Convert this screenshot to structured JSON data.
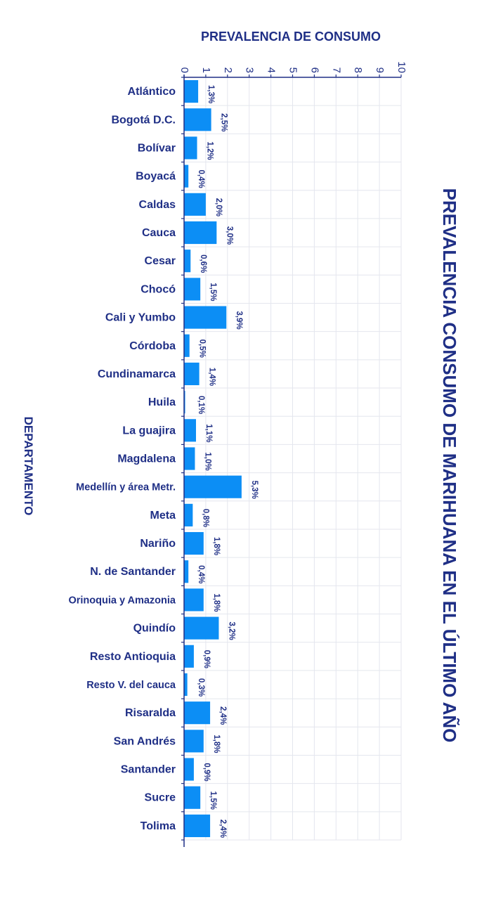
{
  "chart_data": {
    "type": "bar",
    "title": "PREVALENCIA CONSUMO DE MARIHUANA EN EL ÚLTIMO AÑO",
    "xlabel": "PREVALENCIA DE CONSUMO",
    "ylabel": "DEPARTAMENTO",
    "orientation": "horizontal",
    "xlim": [
      0,
      10
    ],
    "xticks": [
      "0",
      "1",
      "2",
      "3",
      "4",
      "5",
      "6",
      "7",
      "8",
      "9",
      "10"
    ],
    "grid": true,
    "legend": "none",
    "bar_color": "#0c8ef5",
    "text_color": "#1f2f86",
    "categories": [
      "Atlántico",
      "Bogotá D.C.",
      "Bolívar",
      "Boyacá",
      "Caldas",
      "Cauca",
      "Cesar",
      "Chocó",
      "Cali y Yumbo",
      "Córdoba",
      "Cundinamarca",
      "Huila",
      "La guajira",
      "Magdalena",
      "Medellín y área Metr.",
      "Meta",
      "Nariño",
      "N. de Santander",
      "Orinoquia y Amazonia",
      "Quindío",
      "Resto Antioquia",
      "Resto V. del cauca",
      "Risaralda",
      "San Andrés",
      "Santander",
      "Sucre",
      "Tolima"
    ],
    "values": [
      1.3,
      2.5,
      1.2,
      0.4,
      2.0,
      3.0,
      0.6,
      1.5,
      3.9,
      0.5,
      1.4,
      0.1,
      1.1,
      1.0,
      5.3,
      0.8,
      1.8,
      0.4,
      1.8,
      3.2,
      0.9,
      0.3,
      2.4,
      1.8,
      0.9,
      1.5,
      2.4
    ],
    "data_labels": [
      "1,3%",
      "2,5%",
      "1,2%",
      "0,4%",
      "2,0%",
      "3,0%",
      "0,6%",
      "1,5%",
      "3,9%",
      "0,5%",
      "1,4%",
      "0,1%",
      "1,1%",
      "1,0%",
      "5,3%",
      "0,8%",
      "1,8%",
      "0,4%",
      "1,8%",
      "3,2%",
      "0,9%",
      "0,3%",
      "2,4%",
      "1,8%",
      "0,9%",
      "1,5%",
      "2,4%"
    ]
  }
}
